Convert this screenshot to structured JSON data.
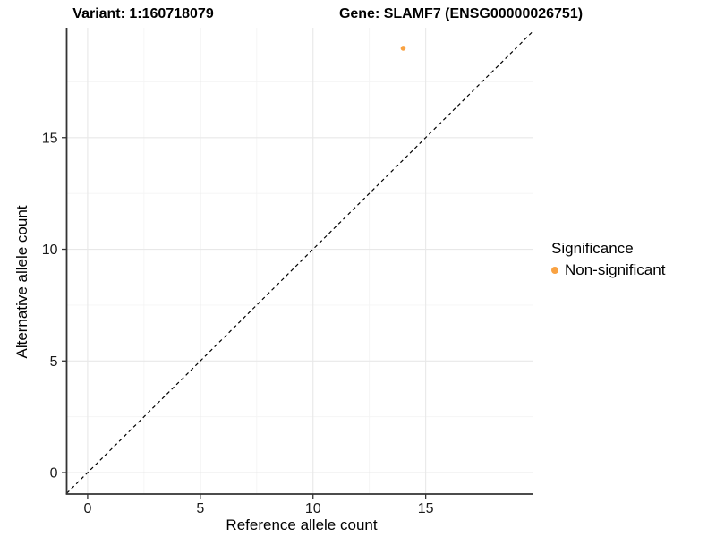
{
  "titles": {
    "left": "Variant: 1:160718079",
    "right": "Gene: SLAMF7 (ENSG00000026751)"
  },
  "legend": {
    "title": "Significance",
    "entries": [
      {
        "label": "Non-significant",
        "color": "#F9A242"
      }
    ]
  },
  "chart_data": {
    "type": "scatter",
    "title_left": "Variant: 1:160718079",
    "title_right": "Gene: SLAMF7 (ENSG00000026751)",
    "xlabel": "Reference allele count",
    "ylabel": "Alternative allele count",
    "xlim": [
      -0.93,
      19.78
    ],
    "ylim": [
      -0.96,
      19.92
    ],
    "xticks": [
      0,
      5,
      10,
      15
    ],
    "yticks": [
      0,
      5,
      10,
      15
    ],
    "xminor": [
      2.5,
      7.5,
      12.5,
      17.5
    ],
    "yminor": [
      2.5,
      7.5,
      12.5,
      17.5
    ],
    "grid": true,
    "legend_position": "right",
    "series": [
      {
        "name": "Non-significant",
        "color": "#F9A242",
        "points": [
          {
            "x": 14,
            "y": 19
          }
        ]
      }
    ],
    "identity_line": {
      "slope": 1,
      "intercept": 0,
      "style": "dashed",
      "color": "#000000"
    },
    "colors": {
      "grid_major": "#E8E8E8",
      "grid_minor": "#F4F4F4",
      "axis": "#333333",
      "tick_label": "#1a1a1a",
      "background": "#ffffff"
    }
  }
}
